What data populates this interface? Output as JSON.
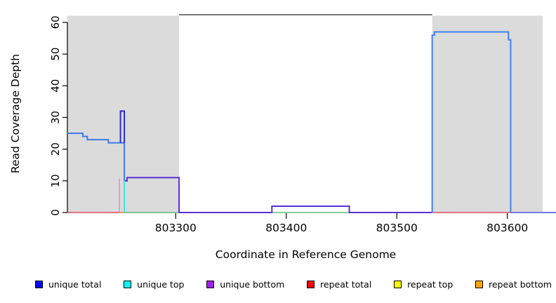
{
  "x_axis": {
    "label": "Coordinate in Reference Genome",
    "ticks": [
      803300,
      803400,
      803500,
      803600
    ]
  },
  "y_axis": {
    "label": "Read Coverage Depth",
    "ticks": [
      0,
      10,
      20,
      30,
      40,
      50,
      60
    ]
  },
  "legend": {
    "items": [
      {
        "label": "unique total",
        "color": "#0000FF"
      },
      {
        "label": "unique top",
        "color": "#00FFFF"
      },
      {
        "label": "unique bottom",
        "color": "#A020F0"
      },
      {
        "label": "repeat total",
        "color": "#FF0000"
      },
      {
        "label": "repeat top",
        "color": "#FFFF00"
      },
      {
        "label": "repeat bottom",
        "color": "#FFA500"
      }
    ]
  },
  "chart_data": {
    "type": "line",
    "title": "",
    "xlabel": "Coordinate in Reference Genome",
    "ylabel": "Read Coverage Depth",
    "xlim": [
      803202,
      803644
    ],
    "ylim": [
      0,
      62.1
    ],
    "grid": false,
    "legend_position": "bottom",
    "shaded_regions": [
      {
        "x0": 803202,
        "x1": 803303,
        "color": "#DBDBDB"
      },
      {
        "x0": 803532,
        "x1": 803632,
        "color": "#DBDBDB"
      }
    ],
    "box_top_color": "#4A4A4A",
    "series": [
      {
        "name": "baseline-green",
        "color": "#5FBE7A",
        "width": 1.5,
        "points": [
          [
            803253.5,
            0
          ],
          [
            803457,
            0
          ]
        ]
      },
      {
        "name": "repeat-total-baseline-left",
        "color": "#E34F6B",
        "width": 1.5,
        "points": [
          [
            803202,
            0
          ],
          [
            803250,
            0
          ]
        ]
      },
      {
        "name": "repeat-total-baseline-right",
        "color": "#E34F6B",
        "width": 1.5,
        "points": [
          [
            803532,
            0
          ],
          [
            803603,
            0
          ]
        ]
      },
      {
        "name": "repeat-bottom-segment",
        "color": "#FF9D2E",
        "width": 2,
        "points": [
          [
            803250,
            0
          ],
          [
            803253.5,
            0
          ]
        ]
      },
      {
        "name": "unique-bottom-rise-pink",
        "color": "#D98BD9",
        "width": 1.5,
        "points": [
          [
            803249,
            0
          ],
          [
            803249,
            10.7
          ]
        ]
      },
      {
        "name": "unique-bottom",
        "color": "#5A31D6",
        "width": 2,
        "points": [
          [
            803253.5,
            10
          ],
          [
            803256,
            10
          ],
          [
            803256,
            11
          ],
          [
            803303,
            11
          ],
          [
            803303,
            0
          ],
          [
            803387,
            0
          ],
          [
            803387,
            2
          ],
          [
            803457,
            2
          ],
          [
            803457,
            0
          ],
          [
            803532,
            0
          ]
        ]
      },
      {
        "name": "baseline-periwinkle",
        "color": "#7678E8",
        "width": 2,
        "points": [
          [
            803603,
            0
          ],
          [
            803644,
            0
          ]
        ]
      },
      {
        "name": "unique-top-drop",
        "color": "#3DE8E8",
        "width": 2,
        "points": [
          [
            803253.5,
            10
          ],
          [
            803253.5,
            0
          ]
        ]
      },
      {
        "name": "unique-total-left",
        "color": "#3E7BE8",
        "width": 2,
        "points": [
          [
            803202,
            25
          ],
          [
            803216,
            25
          ],
          [
            803216,
            24
          ],
          [
            803220,
            24
          ],
          [
            803220,
            23
          ],
          [
            803239,
            23
          ],
          [
            803239,
            22
          ],
          [
            803253.5,
            22
          ],
          [
            803253.5,
            10
          ]
        ]
      },
      {
        "name": "unique-total-spike",
        "color": "#2A2ACD",
        "width": 2,
        "points": [
          [
            803250,
            22
          ],
          [
            803250,
            32
          ],
          [
            803253.5,
            32
          ],
          [
            803253.5,
            22
          ]
        ]
      },
      {
        "name": "unique-total-right-peak",
        "color": "#3E82F0",
        "width": 2,
        "points": [
          [
            803532,
            0
          ],
          [
            803532,
            56
          ],
          [
            803534,
            56
          ],
          [
            803534,
            57
          ],
          [
            803601,
            57
          ],
          [
            803601,
            54.5
          ],
          [
            803603,
            54.5
          ],
          [
            803603,
            0
          ]
        ]
      }
    ]
  }
}
